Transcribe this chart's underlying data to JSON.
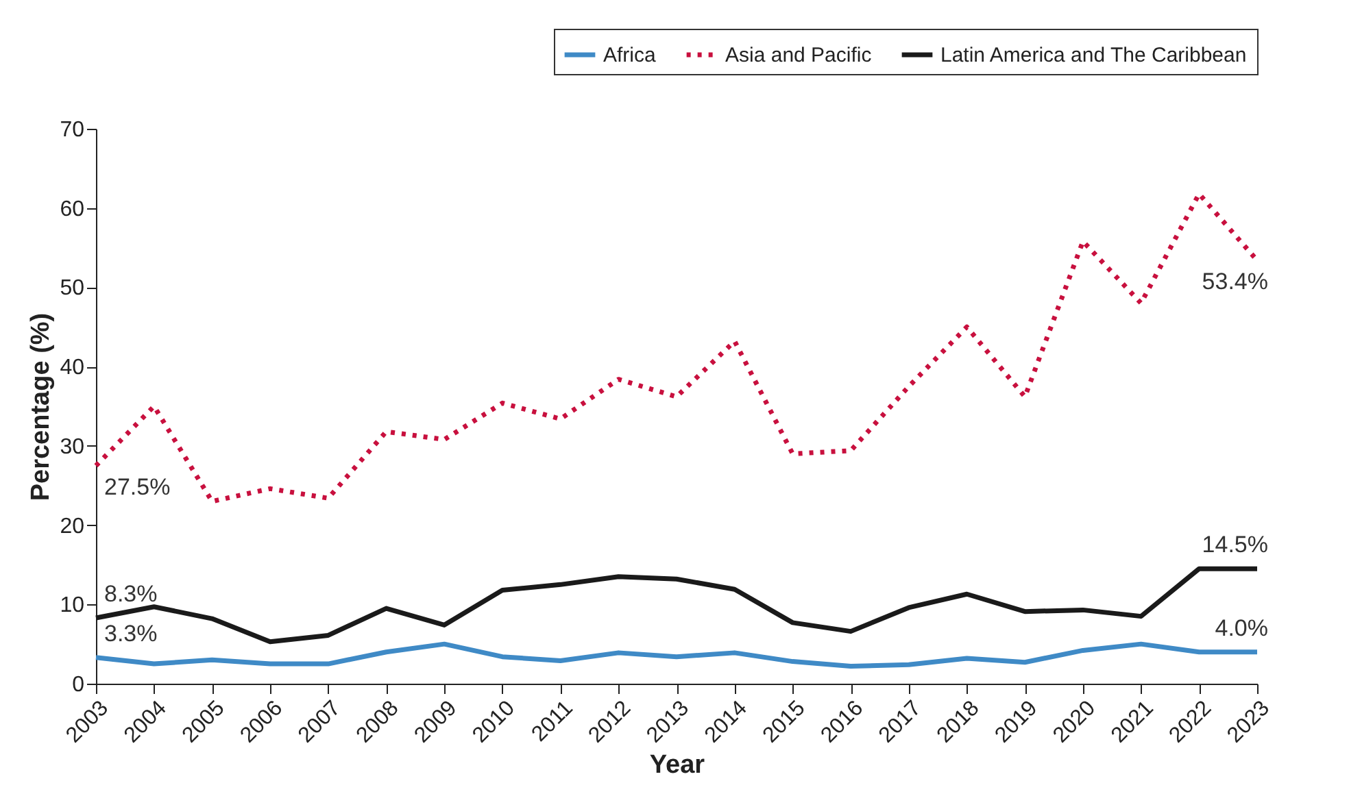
{
  "chart_data": {
    "type": "line",
    "xlabel": "Year",
    "ylabel": "Percentage (%)",
    "categories": [
      "2003",
      "2004",
      "2005",
      "2006",
      "2007",
      "2008",
      "2009",
      "2010",
      "2011",
      "2012",
      "2013",
      "2014",
      "2015",
      "2016",
      "2017",
      "2018",
      "2019",
      "2020",
      "2021",
      "2022",
      "2023"
    ],
    "series": [
      {
        "name": "Africa",
        "color": "#3f8ac6",
        "line_style": "solid",
        "values": [
          3.3,
          2.5,
          3.0,
          2.5,
          2.5,
          4.0,
          5.0,
          3.4,
          2.9,
          3.9,
          3.4,
          3.9,
          2.8,
          2.2,
          2.4,
          3.2,
          2.7,
          4.2,
          5.0,
          4.0,
          4.0
        ]
      },
      {
        "name": "Asia and Pacific",
        "color": "#c8103e",
        "line_style": "dotted",
        "values": [
          27.5,
          35.0,
          23.0,
          24.6,
          23.4,
          31.8,
          30.8,
          35.4,
          33.4,
          38.4,
          36.2,
          43.2,
          29.0,
          29.4,
          37.5,
          45.0,
          36.2,
          55.8,
          48.0,
          61.8,
          53.4
        ]
      },
      {
        "name": "Latin America and The Caribbean",
        "color": "#1a1a1a",
        "line_style": "solid",
        "values": [
          8.3,
          9.7,
          8.2,
          5.3,
          6.1,
          9.5,
          7.4,
          11.8,
          12.5,
          13.5,
          13.2,
          11.9,
          7.7,
          6.6,
          9.6,
          11.3,
          9.1,
          9.3,
          8.5,
          14.5,
          14.5
        ]
      }
    ],
    "ylim": [
      0,
      70
    ],
    "yticks": [
      0,
      10,
      20,
      30,
      40,
      50,
      60,
      70
    ],
    "grid": false,
    "legend": "top right",
    "annotations": [
      {
        "text": "27.5%",
        "x": "2003",
        "y": 27.5
      },
      {
        "text": "8.3%",
        "x": "2003",
        "y": 8.3
      },
      {
        "text": "3.3%",
        "x": "2003",
        "y": 3.3
      },
      {
        "text": "53.4%",
        "x": "2023",
        "y": 53.4
      },
      {
        "text": "14.5%",
        "x": "2023",
        "y": 14.5
      },
      {
        "text": "4.0%",
        "x": "2023",
        "y": 4.0
      }
    ]
  }
}
